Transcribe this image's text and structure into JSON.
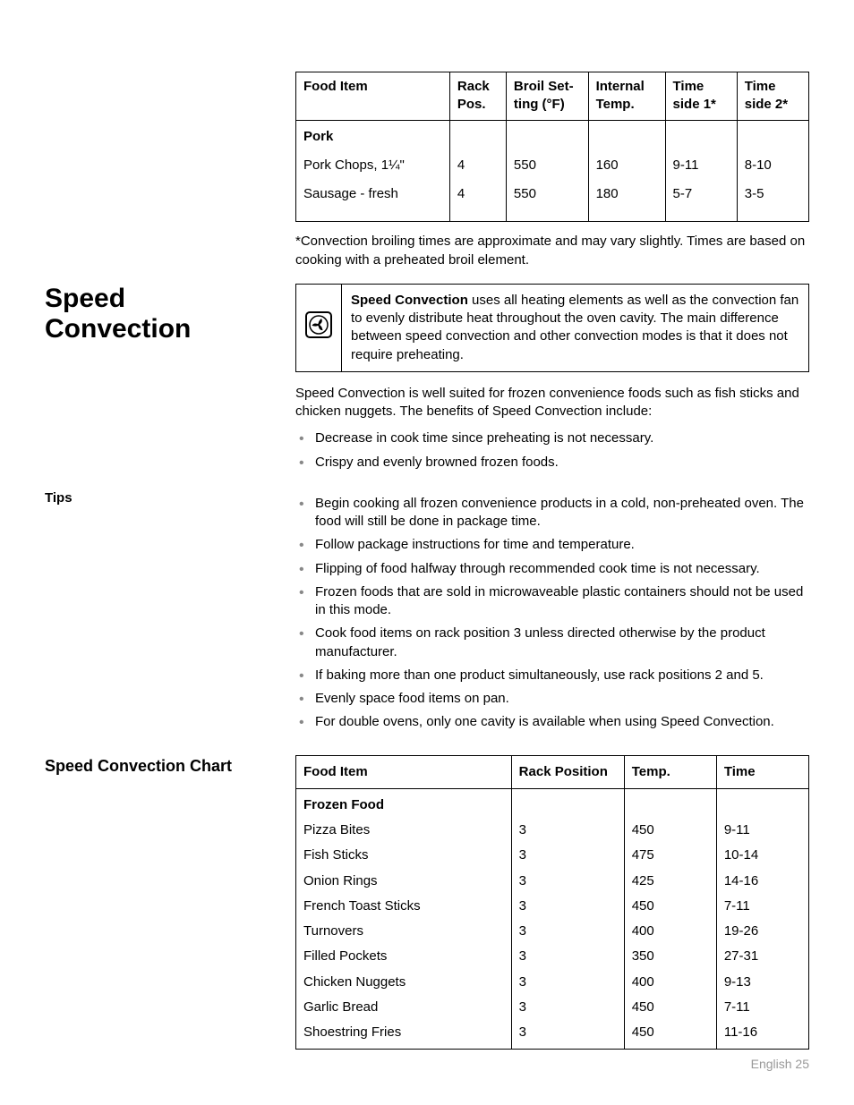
{
  "broil_table": {
    "columns": [
      "Food Item",
      "Rack Pos.",
      "Broil Set- ting (°F)",
      "Internal Temp.",
      "Time side 1*",
      "Time side 2*"
    ],
    "col_widths": [
      "30%",
      "11%",
      "16%",
      "15%",
      "14%",
      "14%"
    ],
    "section_label": "Pork",
    "rows": [
      {
        "item": "Pork Chops, 1¼\"",
        "rack": "4",
        "broil": "550",
        "temp": "160",
        "t1": "9-11",
        "t2": "8-10"
      },
      {
        "item": "Sausage - fresh",
        "rack": "4",
        "broil": "550",
        "temp": "180",
        "t1": "5-7",
        "t2": "3-5"
      }
    ]
  },
  "broil_note": "*Convection broiling times are approximate and may vary slightly. Times are based on cooking with a preheated broil element.",
  "section_title": "Speed Convection",
  "info_box": {
    "bold": "Speed Convection",
    "rest": " uses all heating elements as well as the convection fan to evenly distribute heat throughout the oven cavity. The main difference between speed convection and other convection modes is that it does not require preheating."
  },
  "intro_para": "Speed Convection is well suited for frozen convenience foods such as fish sticks and chicken nuggets. The benefits of Speed Convection include:",
  "benefits": [
    "Decrease in cook time since preheating is not necessary.",
    "Crispy and evenly browned frozen foods."
  ],
  "tips_label": "Tips",
  "tips": [
    "Begin cooking all frozen convenience products in a cold, non-preheated oven. The food will still be done in package time.",
    "Follow package instructions for time and temperature.",
    "Flipping of food halfway through recommended cook time is not necessary.",
    "Frozen foods that are sold in microwaveable plastic containers should not be used in this mode.",
    "Cook food items on rack position 3 unless directed otherwise by the product manufacturer.",
    "If baking more than one product simultaneously, use rack positions 2 and 5.",
    "Evenly space food items on pan.",
    "For double ovens, only one cavity is available when using Speed Convection."
  ],
  "chart_title": "Speed Convection Chart",
  "speed_table": {
    "columns": [
      "Food Item",
      "Rack Position",
      "Temp.",
      "Time"
    ],
    "col_widths": [
      "42%",
      "22%",
      "18%",
      "18%"
    ],
    "section_label": "Frozen Food",
    "rows": [
      {
        "item": "Pizza Bites",
        "rack": "3",
        "temp": "450",
        "time": "9-11"
      },
      {
        "item": "Fish Sticks",
        "rack": "3",
        "temp": "475",
        "time": "10-14"
      },
      {
        "item": "Onion Rings",
        "rack": "3",
        "temp": "425",
        "time": "14-16"
      },
      {
        "item": "French Toast Sticks",
        "rack": "3",
        "temp": "450",
        "time": "7-11"
      },
      {
        "item": "Turnovers",
        "rack": "3",
        "temp": "400",
        "time": "19-26"
      },
      {
        "item": "Filled Pockets",
        "rack": "3",
        "temp": "350",
        "time": "27-31"
      },
      {
        "item": "Chicken Nuggets",
        "rack": "3",
        "temp": "400",
        "time": "9-13"
      },
      {
        "item": "Garlic Bread",
        "rack": "3",
        "temp": "450",
        "time": "7-11"
      },
      {
        "item": "Shoestring Fries",
        "rack": "3",
        "temp": "450",
        "time": "11-16"
      }
    ]
  },
  "footer": "English 25"
}
